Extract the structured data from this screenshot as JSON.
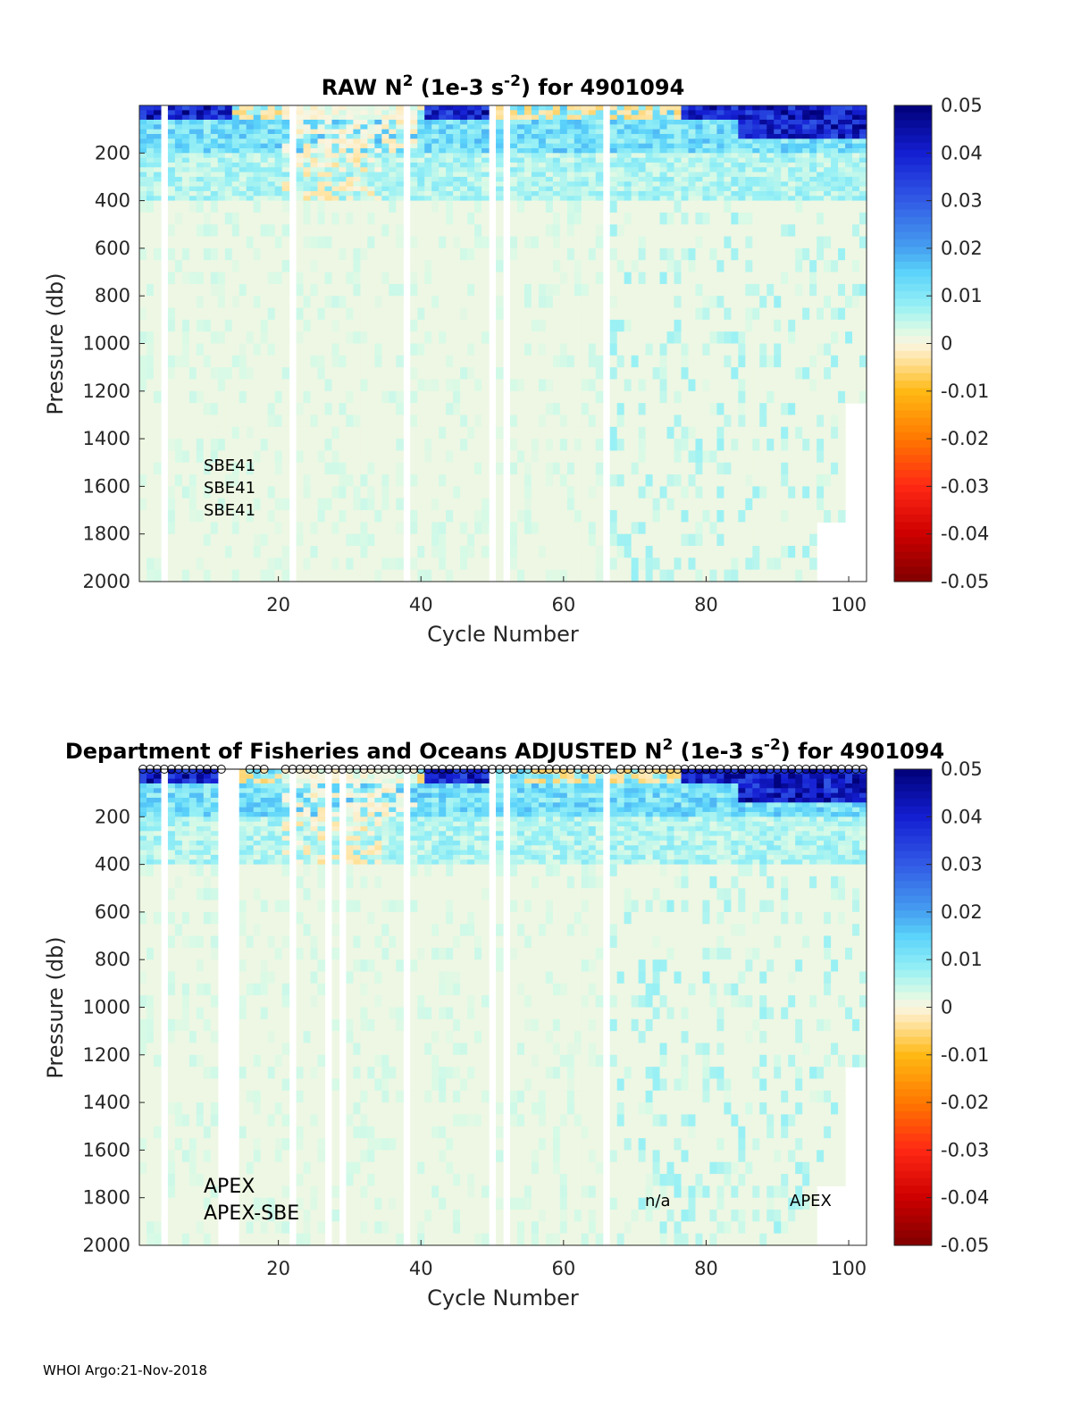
{
  "footer": "WHOI Argo:21-Nov-2018",
  "chart_data": [
    {
      "type": "heatmap",
      "title_parts": [
        "RAW N",
        "2",
        " (1e-3 s",
        "-2",
        ") for 4901094"
      ],
      "xlabel": "Cycle Number",
      "ylabel": "Pressure (db)",
      "xlim": [
        1,
        102
      ],
      "ylim": [
        0,
        2000
      ],
      "y_reversed": true,
      "xticks": [
        "20",
        "40",
        "60",
        "80",
        "100"
      ],
      "yticks": [
        "200",
        "400",
        "600",
        "800",
        "1000",
        "1200",
        "1400",
        "1600",
        "1800",
        "2000"
      ],
      "colorbar": {
        "ticks": [
          "0.05",
          "0.04",
          "0.03",
          "0.02",
          "0.01",
          "0",
          "-0.01",
          "-0.02",
          "-0.03",
          "-0.04",
          "-0.05"
        ],
        "range": [
          -0.05,
          0.05
        ],
        "colormap": "jet-like"
      },
      "annotations": [
        "SBE41",
        "SBE41",
        "SBE41"
      ],
      "approx_mean_profile": {
        "pressure_db": [
          50,
          150,
          250,
          400,
          600,
          1000,
          1500,
          2000
        ],
        "value": [
          0.035,
          0.01,
          0.006,
          0.003,
          0.002,
          0.001,
          0.001,
          0.001
        ]
      },
      "missing_cycles": [
        4,
        22,
        38,
        50,
        52,
        66
      ]
    },
    {
      "type": "heatmap",
      "title_parts": [
        "Department of Fisheries and Oceans  ADJUSTED N",
        "2",
        " (1e-3 s",
        "-2",
        ") for 4901094"
      ],
      "xlabel": "Cycle Number",
      "ylabel": "Pressure (db)",
      "xlim": [
        1,
        102
      ],
      "ylim": [
        0,
        2000
      ],
      "y_reversed": true,
      "xticks": [
        "20",
        "40",
        "60",
        "80",
        "100"
      ],
      "yticks": [
        "200",
        "400",
        "600",
        "800",
        "1000",
        "1200",
        "1400",
        "1600",
        "1800",
        "2000"
      ],
      "colorbar": {
        "ticks": [
          "0.05",
          "0.04",
          "0.03",
          "0.02",
          "0.01",
          "0",
          "-0.01",
          "-0.02",
          "-0.03",
          "-0.04",
          "-0.05"
        ],
        "range": [
          -0.05,
          0.05
        ],
        "colormap": "jet-like"
      },
      "annotations": [
        "APEX",
        "APEX-SBE",
        "n/a",
        "APEX"
      ],
      "markers": "open circles along top edge for each cycle",
      "missing_cycles": [
        4,
        12,
        13,
        14,
        22,
        27,
        29,
        38,
        50,
        52,
        66
      ]
    }
  ]
}
